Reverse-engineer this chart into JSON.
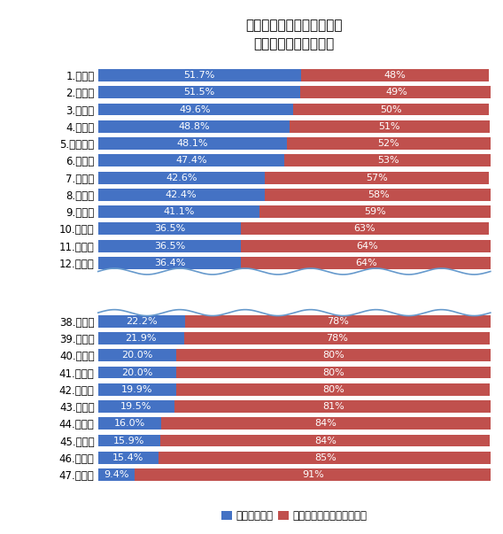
{
  "title": "外国人が継続して住みたい\n都道府県ランキング！",
  "top_categories": [
    "1.東京都",
    "2.福岡県",
    "3.愛知県",
    "4.大阪府",
    "5.神奈川県",
    "6.京都府",
    "7.千葉県",
    "8.兵庫県",
    "9.埼玉県",
    "10.沖縄県",
    "11.茨城県",
    "12.奈良県"
  ],
  "top_blue": [
    51.7,
    51.5,
    49.6,
    48.8,
    48.1,
    47.4,
    42.6,
    42.4,
    41.1,
    36.5,
    36.5,
    36.4
  ],
  "top_red": [
    48,
    49,
    50,
    51,
    52,
    53,
    57,
    58,
    59,
    63,
    64,
    64
  ],
  "top_blue_labels": [
    "51.7%",
    "51.5%",
    "49.6%",
    "48.8%",
    "48.1%",
    "47.4%",
    "42.6%",
    "42.4%",
    "41.1%",
    "36.5%",
    "36.5%",
    "36.4%"
  ],
  "top_red_labels": [
    "48%",
    "49%",
    "50%",
    "51%",
    "52%",
    "53%",
    "57%",
    "58%",
    "59%",
    "63%",
    "64%",
    "64%"
  ],
  "bot_categories": [
    "38.秋田県",
    "39.山形県",
    "40.長崎県",
    "41.福井県",
    "42.大分県",
    "43.岡山県",
    "44.香川県",
    "45.徳島県",
    "46.高知県",
    "47.島根県"
  ],
  "bot_blue": [
    22.2,
    21.9,
    20.0,
    20.0,
    19.9,
    19.5,
    16.0,
    15.9,
    15.4,
    9.4
  ],
  "bot_red": [
    78,
    78,
    80,
    80,
    80,
    81,
    84,
    84,
    85,
    91
  ],
  "bot_blue_labels": [
    "22.2%",
    "21.9%",
    "20.0%",
    "20.0%",
    "19.9%",
    "19.5%",
    "16.0%",
    "15.9%",
    "15.4%",
    "9.4%"
  ],
  "bot_red_labels": [
    "78%",
    "78%",
    "80%",
    "80%",
    "80%",
    "81%",
    "84%",
    "84%",
    "85%",
    "91%"
  ],
  "blue_color": "#4472C4",
  "red_color": "#C0504D",
  "legend_blue": "地元就職希望",
  "legend_red": "その他エリア希望、未回答",
  "bar_height": 0.72,
  "xlim": [
    0,
    100
  ],
  "title_fontsize": 11,
  "label_fontsize": 8,
  "tick_fontsize": 8.5,
  "legend_fontsize": 8.5,
  "bg_color": "#FFFFFF"
}
